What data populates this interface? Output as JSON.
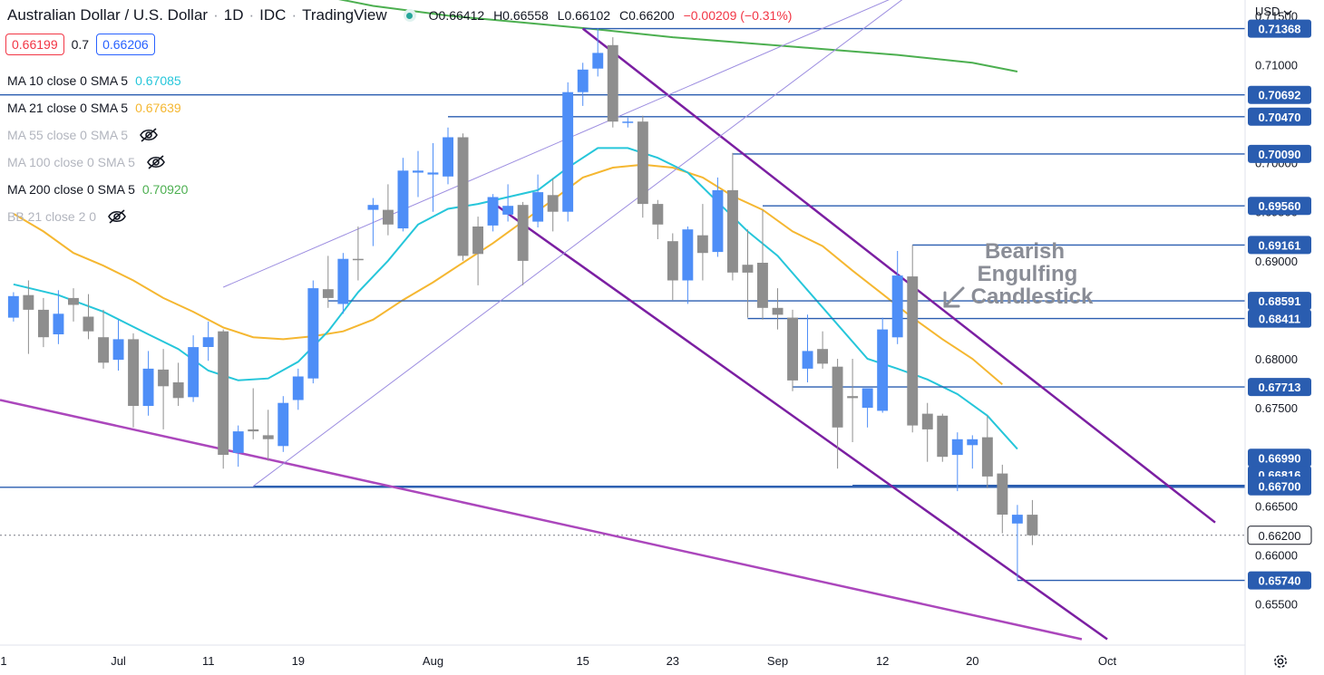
{
  "header": {
    "title": "Australian Dollar / U.S. Dollar",
    "interval": "1D",
    "source": "IDC",
    "platform": "TradingView",
    "open": "O0.66412",
    "high": "H0.66558",
    "low": "L0.66102",
    "close": "C0.66200",
    "change": "−0.00209 (−0.31%)"
  },
  "quotes": {
    "sell": "0.66199",
    "spread": "0.7",
    "buy": "0.66206"
  },
  "currency_selector": "USD",
  "indicators": [
    {
      "label": "MA 10 close 0 SMA 5",
      "value": "0.67085",
      "color": "#26c6da",
      "visible": true
    },
    {
      "label": "MA 21 close 0 SMA 5",
      "value": "0.67639",
      "color": "#f5b731",
      "visible": true
    },
    {
      "label": "MA 55 close 0 SMA 5",
      "value": "",
      "color": "#b2b5be",
      "visible": false
    },
    {
      "label": "MA 100 close 0 SMA 5",
      "value": "",
      "color": "#b2b5be",
      "visible": false
    },
    {
      "label": "MA 200 close 0 SMA 5",
      "value": "0.70920",
      "color": "#4caf50",
      "visible": true
    },
    {
      "label": "BB 21 close 2 0",
      "value": "",
      "color": "#b2b5be",
      "visible": false
    }
  ],
  "annotation": {
    "lines": [
      "Bearish",
      "Engulfing",
      "Candlestick"
    ],
    "color": "#8a8d96"
  },
  "chart_data": {
    "type": "candlestick",
    "ylim": [
      0.6508,
      0.7166
    ],
    "x_index_range": [
      -0.9,
      82.2
    ],
    "y_ticks": [
      "0.71500",
      "0.71000",
      "0.70500",
      "0.70000",
      "0.69500",
      "0.69000",
      "0.68500",
      "0.68000",
      "0.67500",
      "0.67000",
      "0.66500",
      "0.66000",
      "0.65500"
    ],
    "x_ticks": [
      {
        "label": "1",
        "index": -1
      },
      {
        "label": "Jul",
        "index": 7
      },
      {
        "label": "11",
        "index": 13
      },
      {
        "label": "19",
        "index": 19
      },
      {
        "label": "Aug",
        "index": 28
      },
      {
        "label": "15",
        "index": 38
      },
      {
        "label": "23",
        "index": 44
      },
      {
        "label": "Sep",
        "index": 51
      },
      {
        "label": "12",
        "index": 58
      },
      {
        "label": "20",
        "index": 64
      },
      {
        "label": "Oct",
        "index": 73
      }
    ],
    "candles": [
      [
        0.6842,
        0.6864,
        0.6868,
        0.6838
      ],
      [
        0.6865,
        0.685,
        0.688,
        0.6805
      ],
      [
        0.685,
        0.6822,
        0.6862,
        0.6812
      ],
      [
        0.6825,
        0.6846,
        0.687,
        0.6815
      ],
      [
        0.6862,
        0.6855,
        0.6872,
        0.6838
      ],
      [
        0.6843,
        0.6828,
        0.6866,
        0.682
      ],
      [
        0.6822,
        0.6796,
        0.685,
        0.679
      ],
      [
        0.6799,
        0.682,
        0.684,
        0.6788
      ],
      [
        0.682,
        0.6752,
        0.6826,
        0.673
      ],
      [
        0.6752,
        0.679,
        0.6808,
        0.6742
      ],
      [
        0.6789,
        0.6772,
        0.681,
        0.6728
      ],
      [
        0.6776,
        0.676,
        0.6796,
        0.6752
      ],
      [
        0.6761,
        0.6812,
        0.6824,
        0.6756
      ],
      [
        0.6812,
        0.6822,
        0.6838,
        0.6798
      ],
      [
        0.6828,
        0.6702,
        0.683,
        0.6688
      ],
      [
        0.6704,
        0.6726,
        0.6732,
        0.669
      ],
      [
        0.6728,
        0.6726,
        0.677,
        0.6718
      ],
      [
        0.6722,
        0.6718,
        0.6748,
        0.6696
      ],
      [
        0.6711,
        0.6755,
        0.6762,
        0.6705
      ],
      [
        0.6758,
        0.6782,
        0.679,
        0.6748
      ],
      [
        0.678,
        0.6872,
        0.688,
        0.6775
      ],
      [
        0.6871,
        0.6862,
        0.6905,
        0.6852
      ],
      [
        0.6856,
        0.6902,
        0.6908,
        0.6846
      ],
      [
        0.6902,
        0.6901,
        0.6935,
        0.688
      ],
      [
        0.6952,
        0.6957,
        0.6964,
        0.6915
      ],
      [
        0.6952,
        0.6937,
        0.6978,
        0.6926
      ],
      [
        0.6933,
        0.6992,
        0.7005,
        0.693
      ],
      [
        0.699,
        0.6992,
        0.7012,
        0.6965
      ],
      [
        0.6988,
        0.699,
        0.702,
        0.695
      ],
      [
        0.6986,
        0.7026,
        0.7036,
        0.6978
      ],
      [
        0.7026,
        0.6905,
        0.703,
        0.69
      ],
      [
        0.6935,
        0.6907,
        0.6945,
        0.6875
      ],
      [
        0.6936,
        0.6965,
        0.6968,
        0.693
      ],
      [
        0.6947,
        0.6956,
        0.6978,
        0.694
      ],
      [
        0.6957,
        0.69,
        0.696,
        0.6875
      ],
      [
        0.694,
        0.697,
        0.6988,
        0.6934
      ],
      [
        0.6967,
        0.695,
        0.6984,
        0.693
      ],
      [
        0.695,
        0.7072,
        0.7082,
        0.694
      ],
      [
        0.7072,
        0.7095,
        0.7102,
        0.7058
      ],
      [
        0.7096,
        0.7112,
        0.7137,
        0.7088
      ],
      [
        0.712,
        0.7042,
        0.7128,
        0.7036
      ],
      [
        0.7042,
        0.7042,
        0.7046,
        0.7036
      ],
      [
        0.7042,
        0.6958,
        0.7048,
        0.6944
      ],
      [
        0.6958,
        0.6937,
        0.6962,
        0.6922
      ],
      [
        0.692,
        0.688,
        0.6928,
        0.686
      ],
      [
        0.688,
        0.6932,
        0.6935,
        0.6856
      ],
      [
        0.6926,
        0.6908,
        0.6958,
        0.688
      ],
      [
        0.6909,
        0.6972,
        0.6985,
        0.6904
      ],
      [
        0.6972,
        0.6888,
        0.701,
        0.688
      ],
      [
        0.6896,
        0.6888,
        0.6932,
        0.6842
      ],
      [
        0.6898,
        0.6852,
        0.6952,
        0.684
      ],
      [
        0.6852,
        0.6845,
        0.6872,
        0.683
      ],
      [
        0.6842,
        0.6778,
        0.685,
        0.6767
      ],
      [
        0.679,
        0.6808,
        0.6845,
        0.6776
      ],
      [
        0.681,
        0.6795,
        0.6828,
        0.679
      ],
      [
        0.6792,
        0.673,
        0.68,
        0.6688
      ],
      [
        0.6762,
        0.676,
        0.68,
        0.6715
      ],
      [
        0.675,
        0.677,
        0.677,
        0.673
      ],
      [
        0.6747,
        0.683,
        0.6842,
        0.6745
      ],
      [
        0.6822,
        0.6885,
        0.691,
        0.6815
      ],
      [
        0.6884,
        0.6732,
        0.6916,
        0.6725
      ],
      [
        0.6744,
        0.6728,
        0.6755,
        0.6695
      ],
      [
        0.6742,
        0.67,
        0.6744,
        0.6695
      ],
      [
        0.6702,
        0.6718,
        0.6725,
        0.6665
      ],
      [
        0.6712,
        0.6718,
        0.6722,
        0.6688
      ],
      [
        0.672,
        0.668,
        0.6742,
        0.6668
      ],
      [
        0.6683,
        0.6641,
        0.6692,
        0.6622
      ],
      [
        0.6632,
        0.6641,
        0.6651,
        0.6574
      ],
      [
        0.6641,
        0.662,
        0.6656,
        0.661
      ]
    ],
    "ma10": [
      [
        0,
        0.6876
      ],
      [
        3,
        0.6865
      ],
      [
        6,
        0.6848
      ],
      [
        9,
        0.6825
      ],
      [
        11,
        0.681
      ],
      [
        13,
        0.6788
      ],
      [
        15,
        0.6778
      ],
      [
        17,
        0.678
      ],
      [
        19,
        0.6797
      ],
      [
        21,
        0.6828
      ],
      [
        23,
        0.6868
      ],
      [
        25,
        0.69
      ],
      [
        27,
        0.6937
      ],
      [
        29,
        0.6953
      ],
      [
        31,
        0.6958
      ],
      [
        33,
        0.6965
      ],
      [
        35,
        0.6972
      ],
      [
        37,
        0.6995
      ],
      [
        39,
        0.7015
      ],
      [
        41,
        0.7015
      ],
      [
        43,
        0.7005
      ],
      [
        45,
        0.699
      ],
      [
        47,
        0.696
      ],
      [
        49,
        0.693
      ],
      [
        51,
        0.6905
      ],
      [
        53,
        0.687
      ],
      [
        55,
        0.6835
      ],
      [
        57,
        0.68
      ],
      [
        59,
        0.679
      ],
      [
        61,
        0.6779
      ],
      [
        63,
        0.6764
      ],
      [
        65,
        0.6742
      ],
      [
        67,
        0.6708
      ]
    ],
    "ma21": [
      [
        0,
        0.6948
      ],
      [
        2,
        0.693
      ],
      [
        4,
        0.6908
      ],
      [
        6,
        0.6895
      ],
      [
        8,
        0.688
      ],
      [
        10,
        0.6862
      ],
      [
        12,
        0.6848
      ],
      [
        14,
        0.6832
      ],
      [
        16,
        0.6822
      ],
      [
        18,
        0.682
      ],
      [
        20,
        0.6823
      ],
      [
        22,
        0.6828
      ],
      [
        24,
        0.684
      ],
      [
        26,
        0.686
      ],
      [
        28,
        0.6878
      ],
      [
        30,
        0.6898
      ],
      [
        32,
        0.6918
      ],
      [
        34,
        0.694
      ],
      [
        36,
        0.6962
      ],
      [
        38,
        0.6985
      ],
      [
        40,
        0.6995
      ],
      [
        42,
        0.6998
      ],
      [
        44,
        0.6995
      ],
      [
        46,
        0.6985
      ],
      [
        48,
        0.6966
      ],
      [
        50,
        0.6952
      ],
      [
        52,
        0.693
      ],
      [
        54,
        0.6915
      ],
      [
        56,
        0.689
      ],
      [
        58,
        0.6866
      ],
      [
        60,
        0.6842
      ],
      [
        62,
        0.682
      ],
      [
        64,
        0.68
      ],
      [
        66,
        0.6774
      ]
    ],
    "ma200": [
      [
        19,
        0.7175
      ],
      [
        24,
        0.716
      ],
      [
        29,
        0.715
      ],
      [
        34,
        0.7143
      ],
      [
        39,
        0.7136
      ],
      [
        44,
        0.7128
      ],
      [
        49,
        0.7122
      ],
      [
        54,
        0.7116
      ],
      [
        59,
        0.711
      ],
      [
        64,
        0.7102
      ],
      [
        67,
        0.7093
      ]
    ],
    "price_levels": [
      {
        "label": "0.71368",
        "value": 0.71368,
        "from_index": 38,
        "full": false
      },
      {
        "label": "0.70692",
        "value": 0.70692,
        "from_index": null,
        "full": true
      },
      {
        "label": "0.70470",
        "value": 0.7047,
        "from_index": 29,
        "full": false
      },
      {
        "label": "0.70090",
        "value": 0.7009,
        "from_index": 48,
        "full": false
      },
      {
        "label": "0.69560",
        "value": 0.6956,
        "from_index": 50,
        "full": false
      },
      {
        "label": "0.69161",
        "value": 0.69161,
        "from_index": 60,
        "full": false
      },
      {
        "label": "0.68591",
        "value": 0.68591,
        "from_index": 21,
        "full": false
      },
      {
        "label": "0.68411",
        "value": 0.68411,
        "from_index": 49,
        "full": false
      },
      {
        "label": "0.67713",
        "value": 0.67713,
        "from_index": 52,
        "full": false
      },
      {
        "label": "0.66990",
        "value": 0.6699,
        "from_index": null,
        "full": false,
        "label_only": true
      },
      {
        "label": "0.66816",
        "value": 0.66816,
        "from_index": null,
        "full": false,
        "label_only": true
      },
      {
        "label": "0.66709",
        "value": 0.66709,
        "from_index": 56,
        "full": false
      },
      {
        "label": "0.66700",
        "value": 0.667,
        "from_index": 16,
        "full": false
      },
      {
        "label": "0.66690",
        "value": 0.6669,
        "from_index": null,
        "full": true,
        "no_label": true
      },
      {
        "label": "0.65740",
        "value": 0.6574,
        "from_index": 67,
        "full": false
      }
    ],
    "current_price": {
      "label": "0.66200",
      "value": 0.662
    },
    "trend_lines": [
      {
        "points": [
          [
            38,
            0.71368
          ],
          [
            80.2,
            0.6633
          ]
        ],
        "color": "#7b1fa2",
        "width": 2.5
      },
      {
        "points": [
          [
            32,
            0.6959
          ],
          [
            73,
            0.6514
          ]
        ],
        "color": "#7b1fa2",
        "width": 2.5
      },
      {
        "points": [
          [
            -0.9,
            0.6758
          ],
          [
            71.3,
            0.6514
          ]
        ],
        "color": "#ab47bc",
        "width": 2.5
      },
      {
        "points": [
          [
            14,
            0.6873
          ],
          [
            60.5,
            0.718
          ]
        ],
        "color": "#9c8de0",
        "width": 1
      },
      {
        "points": [
          [
            16,
            0.667
          ],
          [
            60.5,
            0.718
          ]
        ],
        "color": "#9c8de0",
        "width": 1
      }
    ]
  }
}
